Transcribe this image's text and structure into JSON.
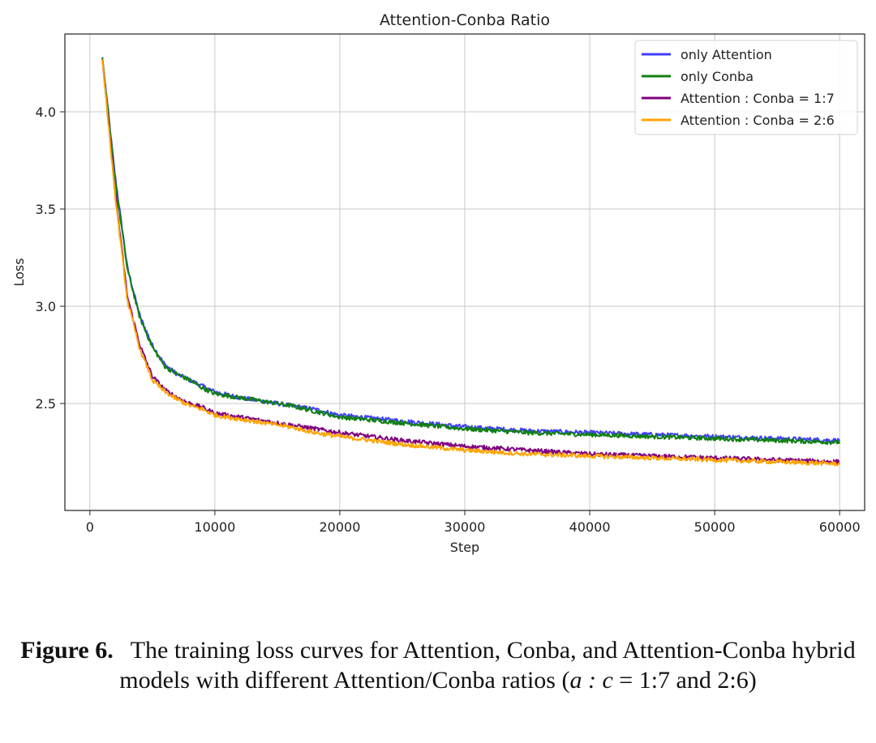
{
  "chart_data": {
    "type": "line",
    "title": "Attention-Conba Ratio",
    "xlabel": "Step",
    "ylabel": "Loss",
    "xlim": [
      -2000,
      62000
    ],
    "ylim": [
      1.95,
      4.4
    ],
    "xticks": [
      0,
      10000,
      20000,
      30000,
      40000,
      50000,
      60000
    ],
    "xtick_labels": [
      "0",
      "10000",
      "20000",
      "30000",
      "40000",
      "50000",
      "60000"
    ],
    "yticks": [
      2.5,
      3.0,
      3.5,
      4.0
    ],
    "ytick_labels": [
      "2.5",
      "3.0",
      "3.5",
      "4.0"
    ],
    "grid": true,
    "legend_position": "top-right",
    "series": [
      {
        "name": "only Attention",
        "color": "#3f3fff",
        "x": [
          1000,
          2000,
          3000,
          4000,
          5000,
          6000,
          7000,
          8000,
          9000,
          10000,
          12000,
          14000,
          16000,
          18000,
          20000,
          25000,
          30000,
          35000,
          40000,
          45000,
          50000,
          55000,
          60000
        ],
        "y": [
          4.28,
          3.68,
          3.2,
          2.95,
          2.8,
          2.7,
          2.65,
          2.62,
          2.59,
          2.56,
          2.53,
          2.51,
          2.49,
          2.47,
          2.44,
          2.41,
          2.38,
          2.36,
          2.35,
          2.34,
          2.33,
          2.32,
          2.31
        ]
      },
      {
        "name": "only Conba",
        "color": "#108010",
        "x": [
          1000,
          2000,
          3000,
          4000,
          5000,
          6000,
          7000,
          8000,
          9000,
          10000,
          12000,
          14000,
          16000,
          18000,
          20000,
          25000,
          30000,
          35000,
          40000,
          45000,
          50000,
          55000,
          60000
        ],
        "y": [
          4.28,
          3.66,
          3.19,
          2.94,
          2.79,
          2.69,
          2.65,
          2.62,
          2.58,
          2.55,
          2.53,
          2.51,
          2.49,
          2.46,
          2.43,
          2.4,
          2.37,
          2.35,
          2.34,
          2.33,
          2.32,
          2.31,
          2.3
        ]
      },
      {
        "name": "Attention : Conba = 1:7",
        "color": "#800080",
        "x": [
          1000,
          2000,
          3000,
          4000,
          5000,
          6000,
          7000,
          8000,
          9000,
          10000,
          12000,
          14000,
          16000,
          18000,
          20000,
          25000,
          30000,
          35000,
          40000,
          45000,
          50000,
          55000,
          60000
        ],
        "y": [
          4.27,
          3.6,
          3.05,
          2.8,
          2.64,
          2.57,
          2.53,
          2.5,
          2.48,
          2.45,
          2.43,
          2.41,
          2.39,
          2.37,
          2.35,
          2.31,
          2.28,
          2.26,
          2.24,
          2.23,
          2.22,
          2.21,
          2.2
        ]
      },
      {
        "name": "Attention : Conba = 2:6",
        "color": "#ffa500",
        "x": [
          1000,
          2000,
          3000,
          4000,
          5000,
          6000,
          7000,
          8000,
          9000,
          10000,
          12000,
          14000,
          16000,
          18000,
          20000,
          25000,
          30000,
          35000,
          40000,
          45000,
          50000,
          55000,
          60000
        ],
        "y": [
          4.27,
          3.58,
          3.03,
          2.78,
          2.62,
          2.56,
          2.52,
          2.49,
          2.47,
          2.44,
          2.42,
          2.4,
          2.38,
          2.35,
          2.33,
          2.29,
          2.26,
          2.24,
          2.23,
          2.22,
          2.21,
          2.2,
          2.19
        ]
      }
    ]
  },
  "caption": {
    "label": "Figure 6.",
    "text_before_math": "The training loss curves for Attention, Conba, and Attention-Conba hybrid models with different Attention/Conba ratios (",
    "math": "a : c",
    "text_after_math": " = 1:7 and 2:6)"
  }
}
